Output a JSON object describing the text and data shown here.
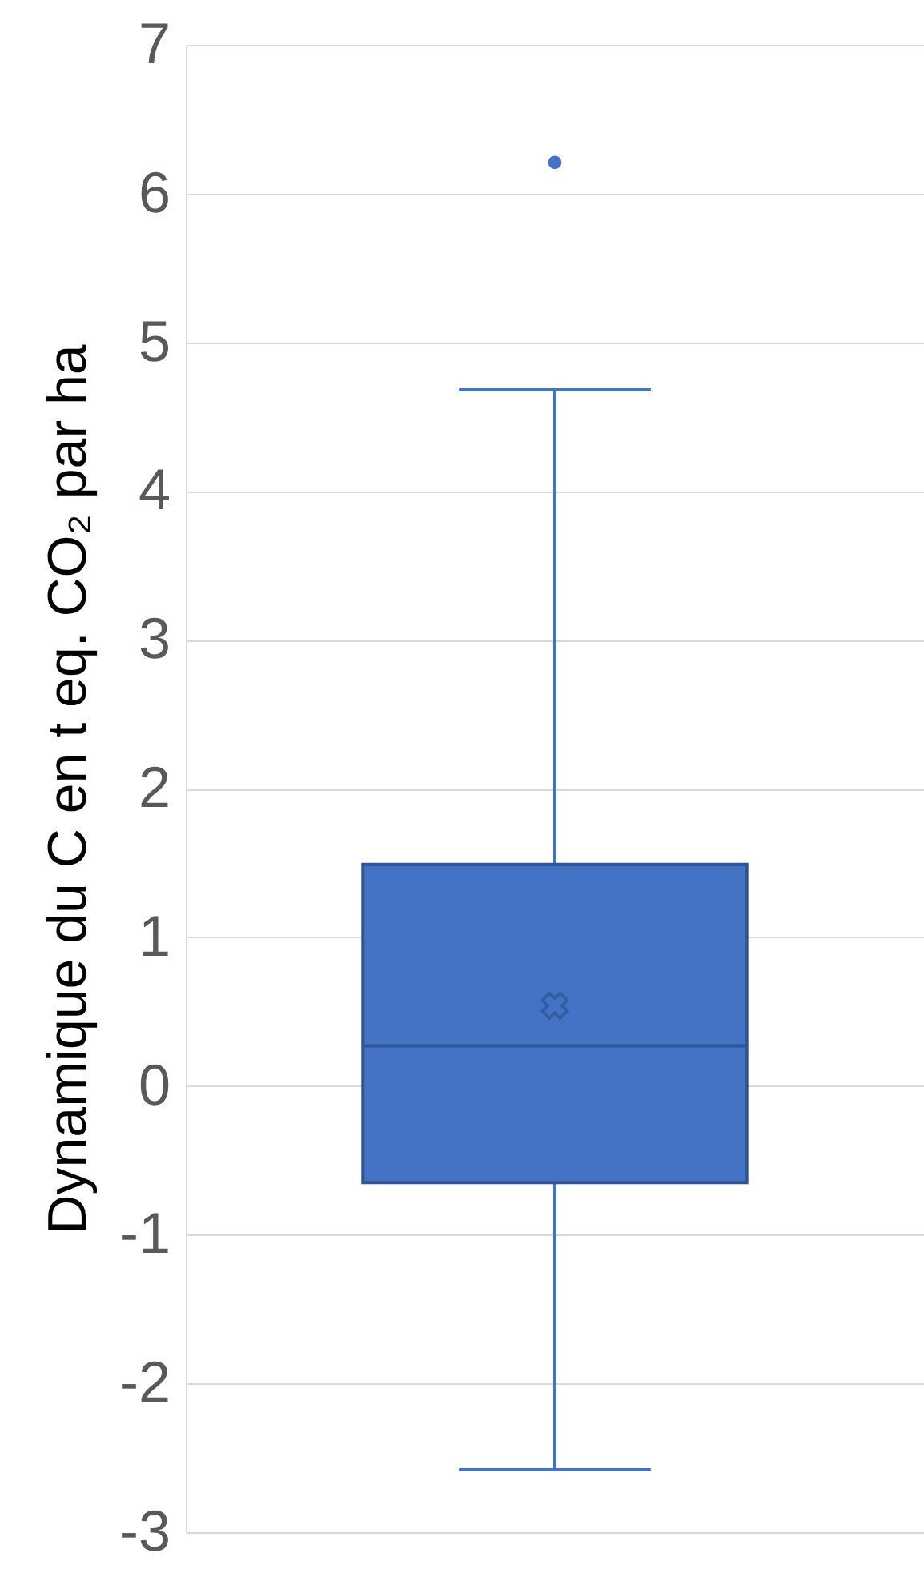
{
  "chart_data": {
    "type": "box",
    "ylabel": "Dynamique du C en t eq. CO₂  par ha",
    "categories": [
      null
    ],
    "boxes": [
      {
        "low": -2.58,
        "q1": -0.65,
        "median": 0.27,
        "q3": 1.49,
        "high": 4.68,
        "mean": 0.54,
        "outliers": [
          6.21
        ]
      }
    ],
    "color": "#4472c4",
    "ylim": [
      -3,
      7
    ],
    "yticks": [
      -3,
      -2,
      -1,
      0,
      1,
      2,
      3,
      4,
      5,
      6,
      7
    ],
    "grid": "y",
    "tick_labels": "y"
  }
}
